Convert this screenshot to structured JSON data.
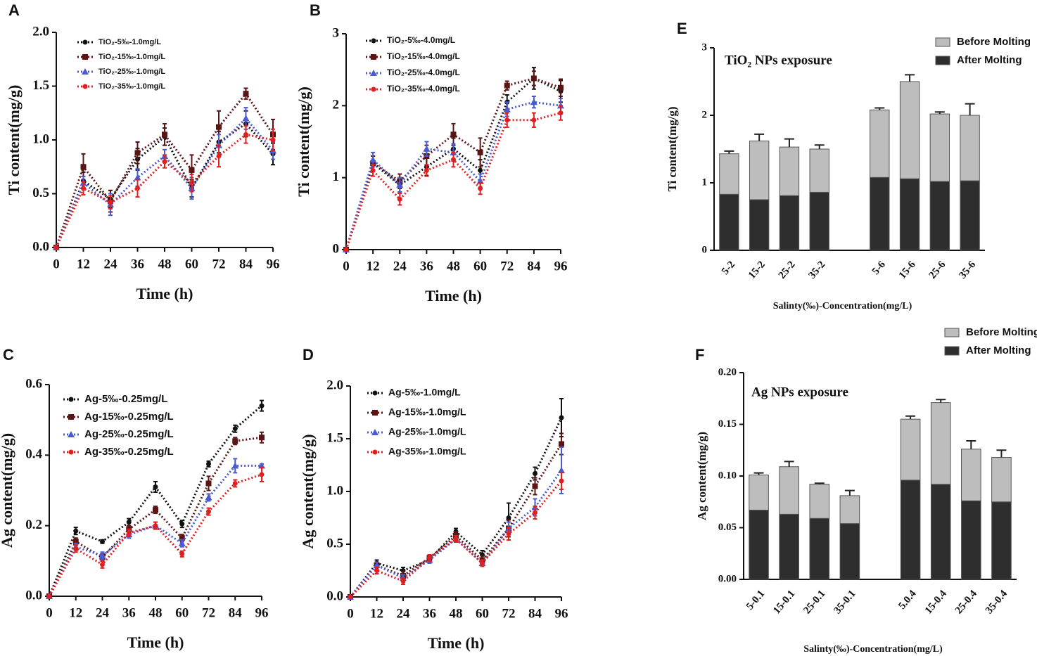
{
  "chart_data": [
    {
      "type": "line",
      "panel": "A",
      "xlabel": "Time (h)",
      "ylabel": "Ti content(mg/g)",
      "x": [
        0,
        12,
        24,
        36,
        48,
        60,
        72,
        84,
        96
      ],
      "xlim": [
        0,
        96
      ],
      "xticks": [
        0,
        12,
        24,
        36,
        48,
        60,
        72,
        84,
        96
      ],
      "ylim": [
        0,
        2.0
      ],
      "yticks": [
        {
          "value": 0,
          "label": "0.0"
        },
        0.5,
        {
          "value": 1,
          "label": "1.0"
        },
        1.5,
        {
          "value": 2,
          "label": "2.0"
        }
      ],
      "series": [
        {
          "name": "TiO₂-5‰-1.0mg/L",
          "color": "#111111",
          "marker": "circle",
          "values": [
            0,
            0.62,
            0.45,
            0.82,
            1.03,
            0.55,
            0.98,
            1.15,
            0.87
          ],
          "errors": [
            0,
            0.08,
            0.08,
            0.1,
            0.08,
            0.08,
            0.1,
            0.12,
            0.1
          ]
        },
        {
          "name": "TiO₂-15‰-1.0mg/L",
          "color": "#5a1414",
          "marker": "square",
          "values": [
            0,
            0.75,
            0.43,
            0.88,
            1.05,
            0.72,
            1.12,
            1.43,
            1.05
          ],
          "errors": [
            0,
            0.12,
            0.1,
            0.1,
            0.1,
            0.14,
            0.15,
            0.05,
            0.14
          ]
        },
        {
          "name": "TiO₂-25‰-1.0mg/L",
          "color": "#4a5bd0",
          "marker": "triangle",
          "values": [
            0,
            0.6,
            0.4,
            0.65,
            0.85,
            0.55,
            0.95,
            1.2,
            0.9
          ],
          "errors": [
            0,
            0.06,
            0.1,
            0.08,
            0.06,
            0.1,
            0.1,
            0.1,
            0.08
          ]
        },
        {
          "name": "TiO₂-35‰-1.0mg/L",
          "color": "#e02020",
          "marker": "circle",
          "values": [
            0,
            0.55,
            0.42,
            0.55,
            0.8,
            0.6,
            0.85,
            1.05,
            1.0
          ],
          "errors": [
            0,
            0.06,
            0.06,
            0.08,
            0.06,
            0.08,
            0.1,
            0.08,
            0.1
          ]
        }
      ]
    },
    {
      "type": "line",
      "panel": "B",
      "xlabel": "Time (h)",
      "ylabel": "Ti content(mg/g)",
      "x": [
        0,
        12,
        24,
        36,
        48,
        60,
        72,
        84,
        96
      ],
      "xlim": [
        0,
        96
      ],
      "xticks": [
        0,
        12,
        24,
        36,
        48,
        60,
        72,
        84,
        96
      ],
      "ylim": [
        0,
        3
      ],
      "yticks": [
        0,
        1,
        2,
        3
      ],
      "series": [
        {
          "name": "TiO₂-5‰-4.0mg/L",
          "color": "#111111",
          "marker": "circle",
          "values": [
            0,
            1.2,
            0.9,
            1.15,
            1.4,
            1.1,
            2.05,
            2.38,
            2.2
          ],
          "errors": [
            0,
            0.1,
            0.1,
            0.12,
            0.15,
            0.15,
            0.1,
            0.15,
            0.15
          ]
        },
        {
          "name": "TiO₂-15‰-4.0mg/L",
          "color": "#5a1414",
          "marker": "square",
          "values": [
            0,
            1.2,
            0.95,
            1.3,
            1.6,
            1.35,
            2.28,
            2.38,
            2.25
          ],
          "errors": [
            0,
            0.1,
            0.1,
            0.15,
            0.15,
            0.2,
            0.06,
            0.1,
            0.12
          ]
        },
        {
          "name": "TiO₂-25‰-4.0mg/L",
          "color": "#4a5bd0",
          "marker": "triangle",
          "values": [
            0,
            1.25,
            0.9,
            1.4,
            1.35,
            0.95,
            1.95,
            2.05,
            2.0
          ],
          "errors": [
            0,
            0.1,
            0.1,
            0.1,
            0.12,
            0.1,
            0.1,
            0.08,
            0.1
          ]
        },
        {
          "name": "TiO₂-35‰-4.0mg/L",
          "color": "#e02020",
          "marker": "circle",
          "values": [
            0,
            1.1,
            0.7,
            1.1,
            1.25,
            0.85,
            1.8,
            1.8,
            1.9
          ],
          "errors": [
            0,
            0.08,
            0.08,
            0.08,
            0.1,
            0.08,
            0.1,
            0.1,
            0.1
          ]
        }
      ]
    },
    {
      "type": "line",
      "panel": "C",
      "xlabel": "Time (h)",
      "ylabel": "Ag content(mg/g)",
      "x": [
        0,
        12,
        24,
        36,
        48,
        60,
        72,
        84,
        96
      ],
      "xlim": [
        0,
        96
      ],
      "xticks": [
        0,
        12,
        24,
        36,
        48,
        60,
        72,
        84,
        96
      ],
      "ylim": [
        0,
        0.6
      ],
      "yticks": [
        {
          "value": 0,
          "label": "0.0"
        },
        0.2,
        0.4,
        0.6
      ],
      "series": [
        {
          "name": "Ag-5‰-0.25mg/L",
          "color": "#111111",
          "marker": "circle",
          "values": [
            0,
            0.185,
            0.155,
            0.21,
            0.31,
            0.205,
            0.375,
            0.475,
            0.54
          ],
          "errors": [
            0,
            0.01,
            0.005,
            0.01,
            0.015,
            0.01,
            0.008,
            0.01,
            0.015
          ]
        },
        {
          "name": "Ag-15‰-0.25mg/L",
          "color": "#5a1414",
          "marker": "square",
          "values": [
            0,
            0.155,
            0.11,
            0.19,
            0.245,
            0.165,
            0.32,
            0.44,
            0.45
          ],
          "errors": [
            0,
            0.01,
            0.01,
            0.01,
            0.01,
            0.01,
            0.02,
            0.01,
            0.015
          ]
        },
        {
          "name": "Ag-25‰-0.25mg/L",
          "color": "#4a5bd0",
          "marker": "triangle",
          "values": [
            0,
            0.14,
            0.115,
            0.175,
            0.2,
            0.15,
            0.28,
            0.37,
            0.37
          ],
          "errors": [
            0,
            0.01,
            0.01,
            0.01,
            0.01,
            0.01,
            0.01,
            0.02,
            0.005
          ]
        },
        {
          "name": "Ag-35‰-0.25mg/L",
          "color": "#e02020",
          "marker": "circle",
          "values": [
            0,
            0.135,
            0.09,
            0.18,
            0.2,
            0.12,
            0.24,
            0.32,
            0.345
          ],
          "errors": [
            0,
            0.01,
            0.01,
            0.01,
            0.01,
            0.008,
            0.01,
            0.01,
            0.02
          ]
        }
      ]
    },
    {
      "type": "line",
      "panel": "D",
      "xlabel": "Time (h)",
      "ylabel": "Ag content(mg/g)",
      "x": [
        0,
        12,
        24,
        36,
        48,
        60,
        72,
        84,
        96
      ],
      "xlim": [
        0,
        96
      ],
      "xticks": [
        0,
        12,
        24,
        36,
        48,
        60,
        72,
        84,
        96
      ],
      "ylim": [
        0,
        2.0
      ],
      "yticks": [
        {
          "value": 0,
          "label": "0.0"
        },
        0.5,
        {
          "value": 1,
          "label": "1.0"
        },
        1.5,
        {
          "value": 2,
          "label": "2.0"
        }
      ],
      "series": [
        {
          "name": "Ag-5‰-1.0mg/L",
          "color": "#111111",
          "marker": "circle",
          "values": [
            0,
            0.32,
            0.25,
            0.35,
            0.62,
            0.4,
            0.75,
            1.17,
            1.7
          ],
          "errors": [
            0,
            0.03,
            0.03,
            0.03,
            0.03,
            0.04,
            0.14,
            0.06,
            0.18
          ]
        },
        {
          "name": "Ag-15‰-1.0mg/L",
          "color": "#5a1414",
          "marker": "square",
          "values": [
            0,
            0.3,
            0.2,
            0.37,
            0.58,
            0.35,
            0.65,
            1.05,
            1.45
          ],
          "errors": [
            0,
            0.03,
            0.04,
            0.03,
            0.04,
            0.04,
            0.08,
            0.08,
            0.1
          ]
        },
        {
          "name": "Ag-25‰-1.0mg/L",
          "color": "#4a5bd0",
          "marker": "triangle",
          "values": [
            0,
            0.3,
            0.18,
            0.35,
            0.55,
            0.32,
            0.65,
            0.85,
            1.2
          ],
          "errors": [
            0,
            0.03,
            0.03,
            0.03,
            0.03,
            0.03,
            0.06,
            0.08,
            0.22
          ]
        },
        {
          "name": "Ag-35‰-1.0mg/L",
          "color": "#e02020",
          "marker": "circle",
          "values": [
            0,
            0.25,
            0.15,
            0.37,
            0.55,
            0.32,
            0.6,
            0.8,
            1.1
          ],
          "errors": [
            0,
            0.03,
            0.03,
            0.03,
            0.03,
            0.03,
            0.06,
            0.06,
            0.08
          ]
        }
      ]
    },
    {
      "type": "stacked-bar",
      "panel": "E",
      "annotation": "TiO₂ NPs exposure",
      "xlabel": "Salinty(‰)-Concentration(mg/L)",
      "ylabel": "Ti content(mg/g)",
      "categories": [
        "5-2",
        "15-2",
        "25-2",
        "35-2",
        null,
        "5-6",
        "15-6",
        "25-6",
        "35-6"
      ],
      "ylim": [
        0,
        3
      ],
      "yticks": [
        0,
        1,
        2,
        3
      ],
      "series": [
        {
          "name": "After Molting",
          "color": "#2e2e2e",
          "values": [
            0.83,
            0.75,
            0.81,
            0.86,
            null,
            1.08,
            1.06,
            1.02,
            1.03
          ],
          "errors": [
            0.06,
            0.08,
            0.08,
            0.09,
            null,
            0.1,
            0.06,
            0.1,
            0.18
          ]
        },
        {
          "name": "Before Molting",
          "color": "#bdbdbd",
          "values": [
            0.6,
            0.87,
            0.72,
            0.64,
            null,
            1.0,
            1.44,
            1.0,
            0.97
          ],
          "errors": [
            0.04,
            0.1,
            0.12,
            0.06,
            null,
            0.03,
            0.1,
            0.03,
            0.17
          ]
        }
      ]
    },
    {
      "type": "stacked-bar",
      "panel": "F",
      "annotation": "Ag NPs exposure",
      "xlabel": "Salinty(‰)-Concentration(mg/L)",
      "ylabel": "Ag content(mg/g)",
      "categories": [
        "5-0.1",
        "15-0.1",
        "25-0.1",
        "35-0.1",
        null,
        "5.0.4",
        "15-0.4",
        "25-0.4",
        "35-0.4"
      ],
      "ylim": [
        0,
        0.2
      ],
      "yticks": [
        {
          "value": 0,
          "label": "0.00"
        },
        0.05,
        {
          "value": 0.1,
          "label": "0.10"
        },
        0.15,
        {
          "value": 0.2,
          "label": "0.20"
        }
      ],
      "series": [
        {
          "name": "After Molting",
          "color": "#2e2e2e",
          "values": [
            0.067,
            0.063,
            0.059,
            0.054,
            null,
            0.096,
            0.092,
            0.076,
            0.075
          ],
          "errors": [
            0.003,
            0.003,
            0.007,
            0.005,
            null,
            0.008,
            0.003,
            0.01,
            0.008
          ]
        },
        {
          "name": "Before Molting",
          "color": "#bdbdbd",
          "values": [
            0.034,
            0.046,
            0.033,
            0.027,
            null,
            0.059,
            0.079,
            0.05,
            0.043
          ],
          "errors": [
            0.002,
            0.005,
            0.001,
            0.005,
            null,
            0.003,
            0.003,
            0.008,
            0.007
          ]
        }
      ]
    }
  ]
}
